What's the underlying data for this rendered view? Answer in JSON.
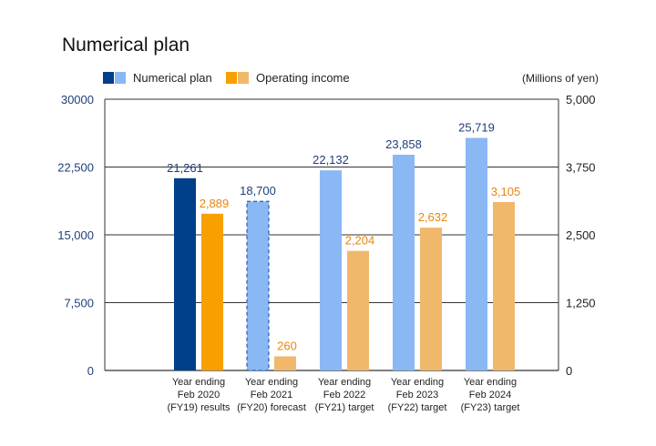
{
  "chart_data": {
    "type": "bar",
    "title": "Numerical plan",
    "unit_label": "(Millions of yen)",
    "categories": [
      [
        "Year ending",
        "Feb 2020",
        "(FY19) results"
      ],
      [
        "Year ending",
        "Feb 2021",
        "(FY20) forecast"
      ],
      [
        "Year ending",
        "Feb 2022",
        "(FY21) target"
      ],
      [
        "Year ending",
        "Feb 2023",
        "(FY22) target"
      ],
      [
        "Year ending",
        "Feb 2024",
        "(FY23) target"
      ]
    ],
    "series": [
      {
        "name": "Numerical plan",
        "axis": "left",
        "values": [
          21261,
          18700,
          22132,
          23858,
          25719
        ],
        "value_labels": [
          "21,261",
          "18,700",
          "22,132",
          "23,858",
          "25,719"
        ]
      },
      {
        "name": "Operating income",
        "axis": "right",
        "values": [
          2889,
          260,
          2204,
          2632,
          3105
        ],
        "value_labels": [
          "2,889",
          "260",
          "2,204",
          "2,632",
          "3,105"
        ]
      }
    ],
    "y_left": {
      "lim": [
        0,
        30000
      ],
      "ticks": [
        "0",
        "7,500",
        "15,000",
        "22,500",
        "30000"
      ]
    },
    "y_right": {
      "lim": [
        0,
        5000
      ],
      "ticks": [
        "0",
        "1,250",
        "2,500",
        "3,750",
        "5,000"
      ]
    },
    "legend_position": "top-left",
    "grid": true,
    "colors": {
      "plan_results": "#003f8a",
      "plan_forecast": "#8ab8f5",
      "plan_forecast_dash": "#2b5fae",
      "plan_target": "#8ab8f5",
      "income_results": "#f7a000",
      "income_forecast": "#f0b86a",
      "income_target": "#f0b86a",
      "gridline": "#333333",
      "axis_left_text": "#1f3f7a",
      "value_blue": "#1f3f7a",
      "value_orange": "#e8860c"
    }
  }
}
